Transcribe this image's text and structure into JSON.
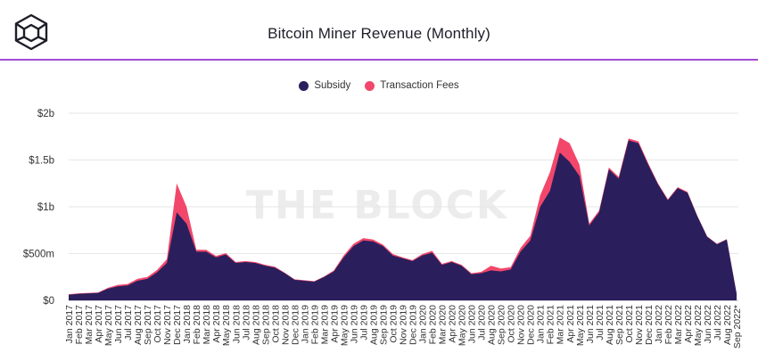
{
  "brand": {
    "logo_icon": "cube-logo-icon",
    "watermark": "THE BLOCK"
  },
  "colors": {
    "subsidy": "#2a1f5c",
    "fees": "#f2476b",
    "accent": "#a24bd6"
  },
  "chart_data": {
    "type": "area",
    "stacked": true,
    "title": "Bitcoin Miner Revenue (Monthly)",
    "xlabel": "",
    "ylabel": "",
    "ylim": [
      0,
      2000
    ],
    "y_unit": "millions USD",
    "y_ticks": [
      {
        "value": 0,
        "label": "$0"
      },
      {
        "value": 500,
        "label": "$500m"
      },
      {
        "value": 1000,
        "label": "$1b"
      },
      {
        "value": 1500,
        "label": "$1.5b"
      },
      {
        "value": 2000,
        "label": "$2b"
      }
    ],
    "legend_position": "top-center",
    "categories": [
      "Jan 2017",
      "Feb 2017",
      "Mar 2017",
      "Apr 2017",
      "May 2017",
      "Jun 2017",
      "Jul 2017",
      "Aug 2017",
      "Sep 2017",
      "Oct 2017",
      "Nov 2017",
      "Dec 2017",
      "Jan 2018",
      "Feb 2018",
      "Mar 2018",
      "Apr 2018",
      "May 2018",
      "Jun 2018",
      "Jul 2018",
      "Aug 2018",
      "Sep 2018",
      "Oct 2018",
      "Nov 2018",
      "Dec 2018",
      "Jan 2019",
      "Feb 2019",
      "Mar 2019",
      "Apr 2019",
      "May 2019",
      "Jun 2019",
      "Jul 2019",
      "Aug 2019",
      "Sep 2019",
      "Oct 2019",
      "Nov 2019",
      "Dec 2019",
      "Jan 2020",
      "Feb 2020",
      "Mar 2020",
      "Apr 2020",
      "May 2020",
      "Jun 2020",
      "Jul 2020",
      "Aug 2020",
      "Sep 2020",
      "Oct 2020",
      "Nov 2020",
      "Dec 2020",
      "Jan 2021",
      "Feb 2021",
      "Mar 2021",
      "Apr 2021",
      "May 2021",
      "Jun 2021",
      "Jul 2021",
      "Aug 2021",
      "Sep 2021",
      "Oct 2021",
      "Nov 2021",
      "Dec 2021",
      "Jan 2022",
      "Feb 2022",
      "Mar 2022",
      "Apr 2022",
      "May 2022",
      "Jun 2022",
      "Jul 2022",
      "Aug 2022",
      "Sep 2022*"
    ],
    "series": [
      {
        "name": "Subsidy",
        "values": [
          60,
          70,
          75,
          80,
          125,
          150,
          160,
          210,
          230,
          300,
          400,
          940,
          820,
          520,
          520,
          460,
          490,
          400,
          410,
          400,
          370,
          350,
          290,
          220,
          210,
          200,
          250,
          310,
          460,
          580,
          640,
          630,
          580,
          480,
          450,
          420,
          480,
          510,
          380,
          410,
          370,
          280,
          290,
          320,
          310,
          330,
          520,
          640,
          1000,
          1170,
          1580,
          1480,
          1330,
          800,
          940,
          1400,
          1300,
          1710,
          1680,
          1450,
          1240,
          1070,
          1200,
          1150,
          900,
          680,
          600,
          650,
          70
        ]
      },
      {
        "name": "Transaction Fees",
        "values": [
          5,
          5,
          5,
          5,
          10,
          15,
          15,
          20,
          20,
          25,
          40,
          310,
          180,
          20,
          20,
          15,
          15,
          10,
          10,
          10,
          10,
          10,
          5,
          5,
          5,
          5,
          5,
          10,
          20,
          25,
          25,
          20,
          15,
          15,
          10,
          10,
          15,
          20,
          10,
          10,
          10,
          10,
          15,
          50,
          30,
          25,
          40,
          50,
          120,
          200,
          160,
          200,
          120,
          20,
          20,
          20,
          20,
          20,
          20,
          15,
          10,
          10,
          10,
          10,
          5,
          5,
          5,
          5,
          5
        ]
      }
    ]
  }
}
